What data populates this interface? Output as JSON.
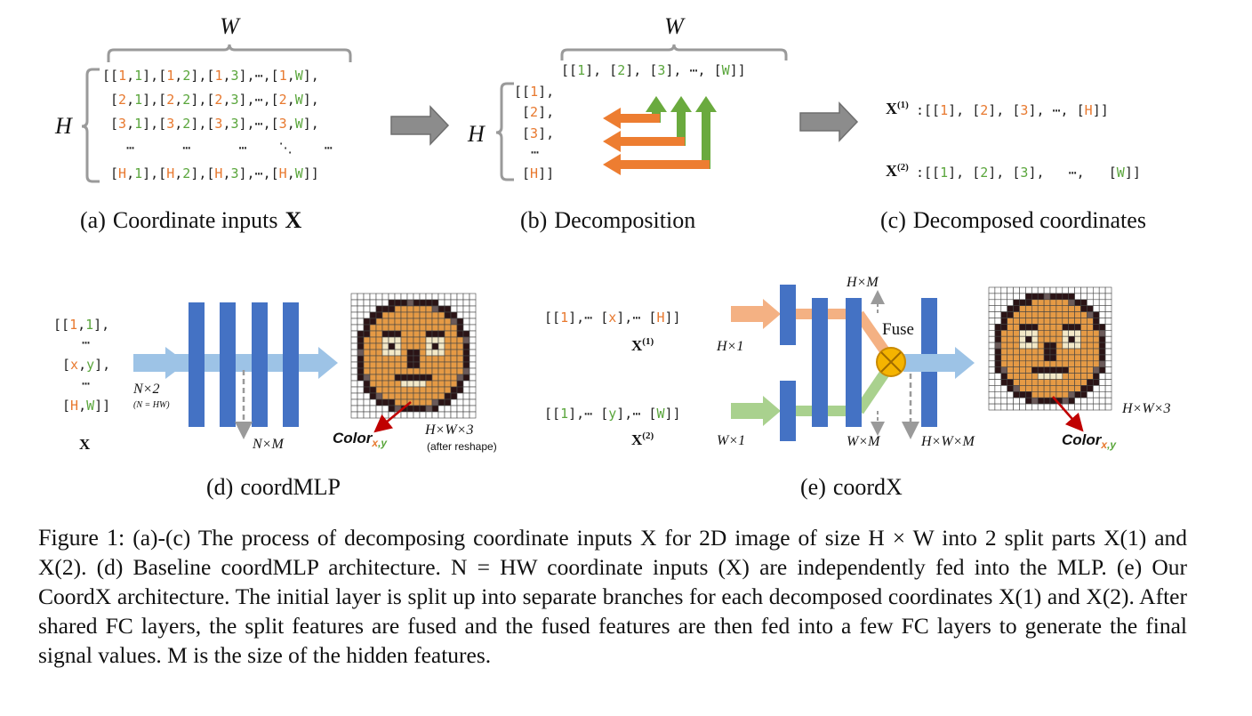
{
  "panel_a": {
    "caption_prefix": "(a)",
    "caption_text": "Coordinate inputs",
    "caption_sym": "X",
    "W": "W",
    "H": "H",
    "rows": [
      [
        [
          "[[",
          "k"
        ],
        [
          "1",
          "o"
        ],
        [
          ",",
          "k"
        ],
        [
          "1",
          "g"
        ],
        [
          "],[",
          "k"
        ],
        [
          "1",
          "o"
        ],
        [
          ",",
          "k"
        ],
        [
          "2",
          "g"
        ],
        [
          "],[",
          "k"
        ],
        [
          "1",
          "o"
        ],
        [
          ",",
          "k"
        ],
        [
          "3",
          "g"
        ],
        [
          "],⋯,[",
          "k"
        ],
        [
          "1",
          "o"
        ],
        [
          ",",
          "k"
        ],
        [
          "W",
          "g"
        ],
        [
          "],",
          "k"
        ]
      ],
      [
        [
          "[",
          "k"
        ],
        [
          "2",
          "o"
        ],
        [
          ",",
          "k"
        ],
        [
          "1",
          "g"
        ],
        [
          "],[",
          "k"
        ],
        [
          "2",
          "o"
        ],
        [
          ",",
          "k"
        ],
        [
          "2",
          "g"
        ],
        [
          "],[",
          "k"
        ],
        [
          "2",
          "o"
        ],
        [
          ",",
          "k"
        ],
        [
          "3",
          "g"
        ],
        [
          "],⋯,[",
          "k"
        ],
        [
          "2",
          "o"
        ],
        [
          ",",
          "k"
        ],
        [
          "W",
          "g"
        ],
        [
          "],",
          "k"
        ]
      ],
      [
        [
          "[",
          "k"
        ],
        [
          "3",
          "o"
        ],
        [
          ",",
          "k"
        ],
        [
          "1",
          "g"
        ],
        [
          "],[",
          "k"
        ],
        [
          "3",
          "o"
        ],
        [
          ",",
          "k"
        ],
        [
          "2",
          "g"
        ],
        [
          "],[",
          "k"
        ],
        [
          "3",
          "o"
        ],
        [
          ",",
          "k"
        ],
        [
          "3",
          "g"
        ],
        [
          "],⋯,[",
          "k"
        ],
        [
          "3",
          "o"
        ],
        [
          ",",
          "k"
        ],
        [
          "W",
          "g"
        ],
        [
          "],",
          "k"
        ]
      ],
      [
        [
          "  ⋯      ⋯      ⋯    ⋱    ⋯",
          "k"
        ]
      ],
      [
        [
          "[",
          "k"
        ],
        [
          "H",
          "o"
        ],
        [
          ",",
          "k"
        ],
        [
          "1",
          "g"
        ],
        [
          "],[",
          "k"
        ],
        [
          "H",
          "o"
        ],
        [
          ",",
          "k"
        ],
        [
          "2",
          "g"
        ],
        [
          "],[",
          "k"
        ],
        [
          "H",
          "o"
        ],
        [
          ",",
          "k"
        ],
        [
          "3",
          "g"
        ],
        [
          "],⋯,[",
          "k"
        ],
        [
          "H",
          "o"
        ],
        [
          ",",
          "k"
        ],
        [
          "W",
          "g"
        ],
        [
          "]]",
          "k"
        ]
      ]
    ]
  },
  "panel_b": {
    "caption_prefix": "(b)",
    "caption_text": "Decomposition",
    "W": "W",
    "H": "H",
    "top_row": [
      [
        "[[",
        "k"
      ],
      [
        "1",
        "g"
      ],
      [
        "], [",
        "k"
      ],
      [
        "2",
        "g"
      ],
      [
        "], [",
        "k"
      ],
      [
        "3",
        "g"
      ],
      [
        "], ⋯, [",
        "k"
      ],
      [
        "W",
        "g"
      ],
      [
        "]]",
        "k"
      ]
    ],
    "left_col": [
      [
        [
          "[[",
          "k"
        ],
        [
          "1",
          "o"
        ],
        [
          "],",
          "k"
        ]
      ],
      [
        [
          "[",
          "k"
        ],
        [
          "2",
          "o"
        ],
        [
          "],",
          "k"
        ]
      ],
      [
        [
          "[",
          "k"
        ],
        [
          "3",
          "o"
        ],
        [
          "],",
          "k"
        ]
      ],
      [
        [
          "⋯",
          "k"
        ]
      ],
      [
        [
          "[",
          "k"
        ],
        [
          "H",
          "o"
        ],
        [
          "]]",
          "k"
        ]
      ]
    ]
  },
  "panel_c": {
    "caption_prefix": "(c)",
    "caption_text": "Decomposed coordinates",
    "x1_label": "X",
    "x1_sup": "(1)",
    "x2_label": "X",
    "x2_sup": "(2)",
    "x1_row": [
      [
        ":[[",
        "k"
      ],
      [
        "1",
        "o"
      ],
      [
        "], [",
        "k"
      ],
      [
        "2",
        "o"
      ],
      [
        "], [",
        "k"
      ],
      [
        "3",
        "o"
      ],
      [
        "], ⋯, [",
        "k"
      ],
      [
        "H",
        "o"
      ],
      [
        "]]",
        "k"
      ]
    ],
    "x2_row": [
      [
        ":[[",
        "k"
      ],
      [
        "1",
        "g"
      ],
      [
        "], [",
        "k"
      ],
      [
        "2",
        "g"
      ],
      [
        "], [",
        "k"
      ],
      [
        "3",
        "g"
      ],
      [
        "],   ⋯,   [",
        "k"
      ],
      [
        "W",
        "g"
      ],
      [
        "]]",
        "k"
      ]
    ]
  },
  "panel_d": {
    "caption_prefix": "(d)",
    "caption_text": "coordMLP",
    "inputs": [
      [
        [
          "[[",
          "k"
        ],
        [
          "1",
          "o"
        ],
        [
          ",",
          "k"
        ],
        [
          "1",
          "g"
        ],
        [
          "],",
          "k"
        ]
      ],
      [
        [
          "⋯",
          "k"
        ]
      ],
      [
        [
          "[",
          "k"
        ],
        [
          "x",
          "o"
        ],
        [
          ",",
          "k"
        ],
        [
          "y",
          "g"
        ],
        [
          "],",
          "k"
        ]
      ],
      [
        [
          "⋯",
          "k"
        ]
      ],
      [
        [
          "[",
          "k"
        ],
        [
          "H",
          "o"
        ],
        [
          ",",
          "k"
        ],
        [
          "W",
          "g"
        ],
        [
          "]]",
          "k"
        ]
      ]
    ],
    "x_label": "X",
    "n2_label": "N×2",
    "n_hw": "(N = HW)",
    "nm_label": "N×M",
    "color_label": "Color",
    "color_sub_x": "x",
    "color_sub_y": "y",
    "hw3_label": "H×W×3",
    "reshape_note": "(after reshape)"
  },
  "panel_e": {
    "caption_prefix": "(e)",
    "caption_text": "coordX",
    "row1": [
      [
        "[[",
        "k"
      ],
      [
        "1",
        "o"
      ],
      [
        "],⋯ [",
        "k"
      ],
      [
        "x",
        "o"
      ],
      [
        "],⋯ [",
        "k"
      ],
      [
        "H",
        "o"
      ],
      [
        "]]",
        "k"
      ]
    ],
    "row2": [
      [
        "[[",
        "k"
      ],
      [
        "1",
        "g"
      ],
      [
        "],⋯ [",
        "k"
      ],
      [
        "y",
        "g"
      ],
      [
        "],⋯ [",
        "k"
      ],
      [
        "W",
        "g"
      ],
      [
        "]]",
        "k"
      ]
    ],
    "x1_label": "X",
    "x1_sup": "(1)",
    "x2_label": "X",
    "x2_sup": "(2)",
    "h1_label": "H×1",
    "w1_label": "W×1",
    "hm_label": "H×M",
    "wm_label": "W×M",
    "hwm_label": "H×W×M",
    "fuse_label": "Fuse",
    "hw3_label": "H×W×3",
    "color_label": "Color",
    "color_sub_x": "x",
    "color_sub_y": "y"
  },
  "caption": {
    "figure_label": "Figure 1:",
    "text": "(a)-(c) The process of decomposing coordinate inputs X for 2D image of size H × W into 2 split parts X(1) and X(2). (d) Baseline coordMLP architecture. N = HW coordinate inputs (X) are independently fed into the MLP. (e) Our CoordX architecture. The initial layer is split up into separate branches for each decomposed coordinates X(1) and X(2). After shared FC layers, the split features are fused and the fused features are then fed into a few FC layers to generate the final signal values. M is the size of the hidden features."
  },
  "colors": {
    "orange": "#e8792f",
    "green": "#5aa63c",
    "blue_layer": "#4472c4",
    "light_blue_arrow": "#9dc3e6",
    "light_orange_arrow": "#f4b183",
    "light_green_arrow": "#a9d18e",
    "gray_arrow": "#8c8c8c",
    "fuse_fill": "#f5b400",
    "red_arrow": "#c00000"
  },
  "icons": [
    "right-arrow-icon",
    "fuse-circle-icon",
    "pixel-face-icon"
  ]
}
